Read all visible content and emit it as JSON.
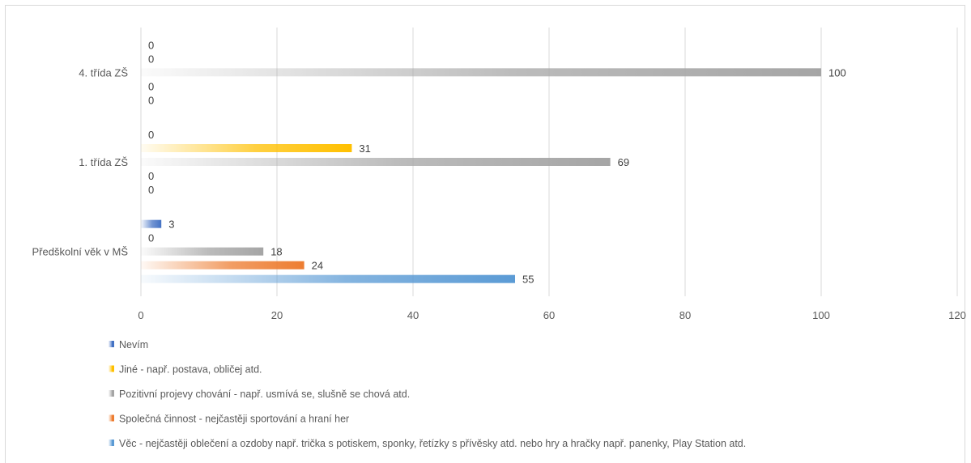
{
  "chart_data": {
    "type": "bar",
    "orientation": "horizontal",
    "title": "",
    "xlabel": "",
    "ylabel": "",
    "xlim": [
      0,
      120
    ],
    "x_ticks": [
      0,
      20,
      40,
      60,
      80,
      100,
      120
    ],
    "grid": true,
    "legend_position": "bottom",
    "categories": [
      "Předškolní věk v MŠ",
      "1. třída ZŠ",
      "4. třída ZŠ"
    ],
    "series": [
      {
        "name": "Věc - nejčastěji oblečení a ozdoby např. trička s potiskem, sponky, řetízky s přívěsky atd. nebo hry a hračky např. panenky, Play Station atd.",
        "color": "#5b9bd5",
        "values": [
          55,
          0,
          0
        ]
      },
      {
        "name": "Společná činnost - nejčastěji sportování a hraní her",
        "color": "#ed7d31",
        "values": [
          24,
          0,
          0
        ]
      },
      {
        "name": "Pozitivní projevy chování - např. usmívá se, slušně se chová atd.",
        "color": "#a5a5a5",
        "values": [
          18,
          69,
          100
        ]
      },
      {
        "name": "Jiné - např. postava, obličej atd.",
        "color": "#ffc000",
        "values": [
          0,
          31,
          0
        ]
      },
      {
        "name": "Nevím",
        "color": "#4472c4",
        "values": [
          3,
          0,
          0
        ]
      }
    ],
    "legend_order": [
      4,
      3,
      2,
      1,
      0
    ]
  }
}
